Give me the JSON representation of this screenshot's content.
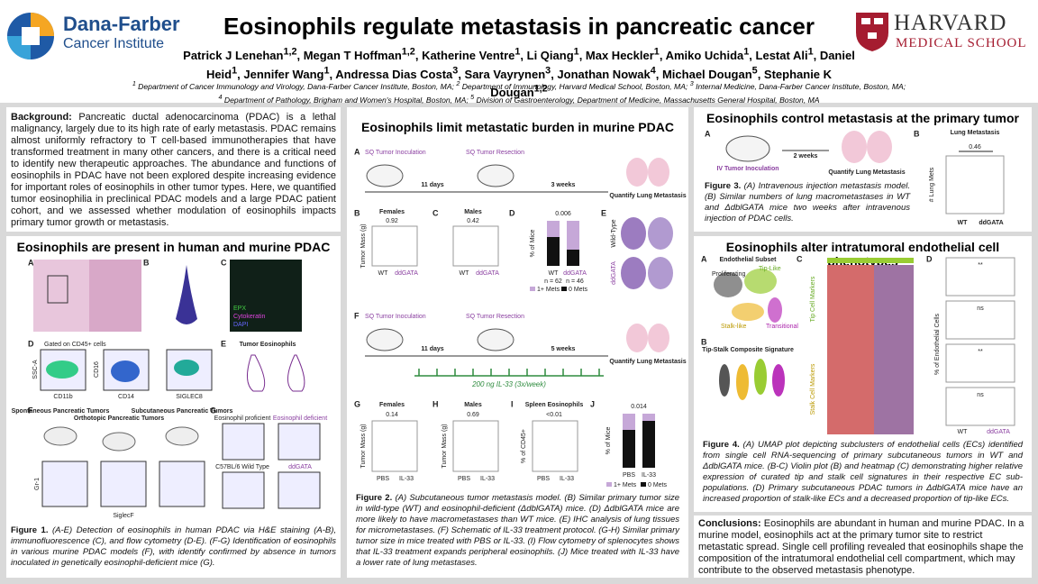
{
  "header": {
    "title": "Eosinophils regulate metastasis in pancreatic cancer",
    "logo_left": [
      "Dana-Farber",
      "Cancer Institute"
    ],
    "logo_right": [
      "HARVARD",
      "MEDICAL SCHOOL"
    ],
    "authors": [
      [
        "Patrick J Lenehan",
        "1,2"
      ],
      [
        ", Megan T Hoffman",
        "1,2"
      ],
      [
        ", Katherine Ventre",
        "1"
      ],
      [
        ", Li Qiang",
        "1"
      ],
      [
        ", Max Heckler",
        "1"
      ],
      [
        ", Amiko Uchida",
        "1"
      ],
      [
        ", Lestat Ali",
        "1"
      ],
      [
        ", Daniel Heid",
        "1"
      ],
      [
        ", Jennifer Wang",
        "1"
      ],
      [
        ", Andressa Dias Costa",
        "3"
      ],
      [
        ", Sara Vayrynen",
        "3"
      ],
      [
        ", Jonathan Nowak",
        "4"
      ],
      [
        ", Michael Dougan",
        "5"
      ],
      [
        ", Stephanie K Dougan",
        "1,2"
      ]
    ],
    "affiliations": [
      [
        [
          "1",
          " Department of Cancer Immunology and Virology, Dana-Farber Cancer Institute, Boston, MA; "
        ],
        [
          "2",
          " Department of Immunology, Harvard Medical School, Boston, MA; "
        ],
        [
          "3",
          " Internal Medicine, Dana-Farber Cancer Institute, Boston, MA;"
        ]
      ],
      [
        [
          "4",
          " Department of Pathology, Brigham and Women's Hospital, Boston, MA; "
        ],
        [
          "5",
          " Division of Gastroenterology, Department of Medicine, Massachusetts General Hospital, Boston, MA"
        ]
      ]
    ]
  },
  "background": {
    "label": "Background:",
    "text": "Pancreatic ductal adenocarcinoma (PDAC) is a lethal malignancy, largely due to its high rate of early metastasis. PDAC remains almost uniformly refractory to T cell-based immunotherapies that have transformed treatment in many other cancers, and there is a critical need to identify new therapeutic approaches. The abundance and functions of eosinophils in PDAC have not been explored despite increasing evidence for important roles of eosinophils in other tumor types. Here, we quantified tumor eosinophilia in preclinical PDAC models and a large PDAC patient cohort, and we assessed whether modulation of eosinophils impacts primary tumor growth or metastasis."
  },
  "sections": [
    {
      "title": "Eosinophils are present in human and murine PDAC",
      "figure": {
        "panels": [
          "A",
          "B",
          "C",
          "D",
          "E",
          "F",
          "G"
        ],
        "epx": "EPX",
        "ck": "Cytokeratin",
        "dapi": "DAPI",
        "gated": "Gated on CD45+ cells",
        "cd11b": "CD11b",
        "cd14": "CD14",
        "siglec8": "SIGLEC8",
        "ssc": "SSC-A",
        "cd16": "CD16",
        "tumor_eos": "Tumor Eosinophils",
        "spont": "Spontaneous Pancreatic Tumors",
        "ortho": "Orthotopic Pancreatic Tumors",
        "subq": "Subcutaneous Pancreatic Tumors",
        "gr1": "Gr-1",
        "siglecf": "SiglecF",
        "prof": "Eosinophil proficient",
        "def": "Eosinophil deficient",
        "wt": "C57BL/6 Wild Type",
        "dd": "ddGATA"
      },
      "caption": {
        "label": "Figure 1.",
        "text": "(A-E) Detection of eosinophils in human PDAC via H&E staining (A-B), immunofluorescence (C), and flow cytometry (D-E). (F-G) Identification of eosinophils in various murine PDAC models (F), with identify confirmed by absence in tumors inoculated in genetically eosinophil-deficient mice (G)."
      }
    },
    {
      "title": "Eosinophils limit metastatic burden in murine PDAC",
      "figure": {
        "panels": [
          "A",
          "B",
          "C",
          "D",
          "E",
          "F",
          "G",
          "H",
          "I",
          "J"
        ],
        "inoc": "SQ Tumor Inoculation",
        "resect": "SQ Tumor Resection",
        "days": "11 days",
        "weeks3": "3 weeks",
        "weeks5": "5 weeks",
        "quant": "Quantify Lung Metastasis",
        "females": "Females",
        "males": "Males",
        "p_b": "0.92",
        "p_c": "0.42",
        "p_d": "0.006",
        "p_g": "0.14",
        "p_h": "0.69",
        "p_i": "<0.01",
        "p_j": "0.014",
        "mass": "Tumor Mass (g)",
        "mice": "% of Mice",
        "cd45": "% of CD45+",
        "wt": "WT",
        "dd": "ddGATA",
        "n_wt": "n = 62",
        "n_dd": "n = 46",
        "mets1": "1+ Mets",
        "mets0": "0 Mets",
        "wildtype": "Wild-Type",
        "il33dose": "200 ng IL-33 (3x/week)",
        "pbs": "PBS",
        "il33": "IL-33",
        "spleen": "Spleen Eosinophils"
      },
      "caption": {
        "label": "Figure 2.",
        "text": "(A) Subcutaneous tumor metastasis model. (B) Similar primary tumor size in wild-type (WT) and eosinophil-deficient (ΔdblGATA) mice. (D) ΔdblGATA mice are more likely to have macrometastases than WT mice. (E) IHC analysis of lung tissues for micrometastases. (F) Schematic of IL-33 treatment protocol. (G-H) Similar primary tumor size in mice treated with PBS or IL-33. (I) Flow cytometry of splenocytes shows that IL-33 treatment expands peripheral eosinophils. (J) Mice treated with IL-33 have a lower rate of lung metastases."
      }
    },
    {
      "title": "Eosinophils control metastasis at the primary tumor",
      "figure": {
        "panels": [
          "A",
          "B"
        ],
        "inoc": "IV Tumor Inoculation",
        "weeks": "2 weeks",
        "quant": "Quantify Lung Metastasis",
        "lung": "Lung Metastasis",
        "p": "0.46",
        "ylabel": "# Lung Mets",
        "wt": "WT",
        "dd": "ddGATA"
      },
      "caption": {
        "label": "Figure 3.",
        "text": "(A) Intravenous injection metastasis model. (B) Similar numbers of lung macrometastases in WT and ΔdblGATA mice two weeks after intravenous injection of PDAC cells."
      }
    },
    {
      "title": "Eosinophils alter intratumoral endothelial cell phenotypes",
      "figure": {
        "panels": [
          "A",
          "B",
          "C",
          "D"
        ],
        "subset": "Endothelial Subset",
        "tip": "Tip-Like",
        "prolif": "Proliferating",
        "trans": "Transitional",
        "stalk": "Stalk-like",
        "composite": "Tip-Stalk Composite Signature",
        "tipm": "Tip Cell Markers",
        "stalkm": "Stalk Cell Markers",
        "pct": "% of Endothelial Cells",
        "sig": "**",
        "ns": "ns",
        "wt": "WT",
        "dd": "ddGATA"
      },
      "caption": {
        "label": "Figure 4.",
        "text": "(A) UMAP plot depicting subclusters of endothelial cells (ECs) identified from single cell RNA-sequencing of primary subcutaneous tumors in WT and ΔdblGATA mice. (B-C) Violin plot (B) and heatmap (C) demonstrating higher relative expression of curated tip and stalk cell signatures in their respective EC sub-populations. (D) Primary subcutaneous PDAC tumors in ΔdblGATA mice have an increased proportion of stalk-like ECs and a decreased proportion of tip-like ECs."
      }
    }
  ],
  "conclusions": {
    "label": "Conclusions:",
    "text": "Eosinophils are abundant in human and murine PDAC. In a murine model, eosinophils act at the primary tumor site to restrict metastatic spread. Single cell profiling revealed that eosinophils shape the composition of the intratumoral endothelial cell compartment, which may contribute to the observed metastasis phenotype."
  }
}
